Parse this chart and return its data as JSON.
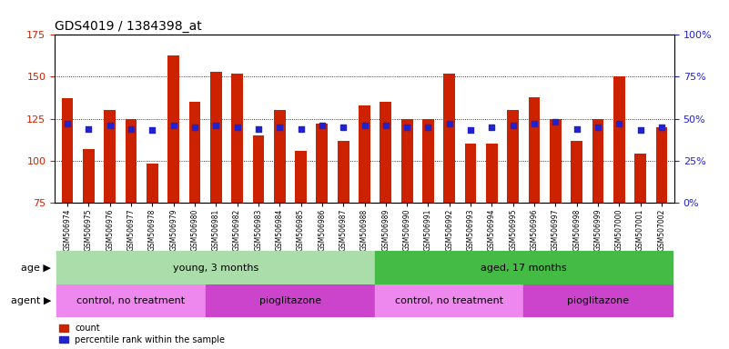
{
  "title": "GDS4019 / 1384398_at",
  "samples": [
    "GSM506974",
    "GSM506975",
    "GSM506976",
    "GSM506977",
    "GSM506978",
    "GSM506979",
    "GSM506980",
    "GSM506981",
    "GSM506982",
    "GSM506983",
    "GSM506984",
    "GSM506985",
    "GSM506986",
    "GSM506987",
    "GSM506988",
    "GSM506989",
    "GSM506990",
    "GSM506991",
    "GSM506992",
    "GSM506993",
    "GSM506994",
    "GSM506995",
    "GSM506996",
    "GSM506997",
    "GSM506998",
    "GSM506999",
    "GSM507000",
    "GSM507001",
    "GSM507002"
  ],
  "count": [
    137,
    107,
    130,
    125,
    98,
    163,
    135,
    153,
    152,
    115,
    130,
    106,
    122,
    112,
    133,
    135,
    125,
    125,
    152,
    110,
    110,
    130,
    138,
    125,
    112,
    125,
    150,
    104,
    120
  ],
  "percentile": [
    47,
    44,
    46,
    44,
    43,
    46,
    45,
    46,
    45,
    44,
    45,
    44,
    46,
    45,
    46,
    46,
    45,
    45,
    47,
    43,
    45,
    46,
    47,
    48,
    44,
    45,
    47,
    43,
    45
  ],
  "ylim_left": [
    75,
    175
  ],
  "ylim_right": [
    0,
    100
  ],
  "yticks_left": [
    75,
    100,
    125,
    150,
    175
  ],
  "yticks_right": [
    0,
    25,
    50,
    75,
    100
  ],
  "bar_color": "#cc2200",
  "dot_color": "#2222cc",
  "bg_color": "#ffffff",
  "age_groups": [
    {
      "label": "young, 3 months",
      "start": 0,
      "end": 15,
      "color": "#aaddaa"
    },
    {
      "label": "aged, 17 months",
      "start": 15,
      "end": 29,
      "color": "#44bb44"
    }
  ],
  "agent_groups": [
    {
      "label": "control, no treatment",
      "start": 0,
      "end": 7,
      "color": "#ee88ee"
    },
    {
      "label": "pioglitazone",
      "start": 7,
      "end": 15,
      "color": "#cc44cc"
    },
    {
      "label": "control, no treatment",
      "start": 15,
      "end": 22,
      "color": "#ee88ee"
    },
    {
      "label": "pioglitazone",
      "start": 22,
      "end": 29,
      "color": "#cc44cc"
    }
  ],
  "legend_count_label": "count",
  "legend_percentile_label": "percentile rank within the sample",
  "age_label": "age",
  "agent_label": "agent",
  "title_fontsize": 10,
  "tick_fontsize": 7,
  "bar_label_fontsize": 6,
  "annotation_fontsize": 8
}
